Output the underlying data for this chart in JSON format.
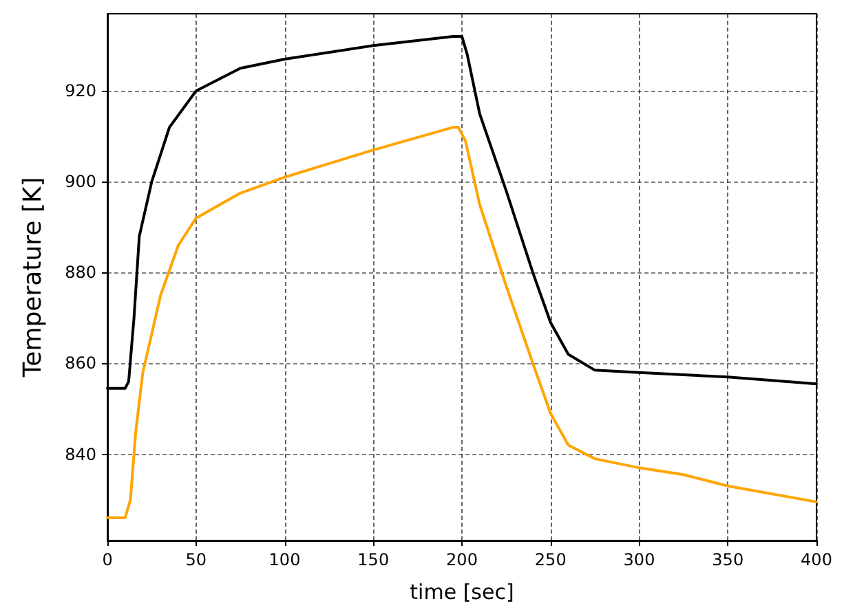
{
  "chart_data": {
    "type": "line",
    "xlabel": "time [sec]",
    "ylabel": "Temperature [K]",
    "xlim": [
      0,
      400
    ],
    "xticks": [
      0,
      50,
      100,
      150,
      200,
      250,
      300,
      350,
      400
    ],
    "ylim": [
      821,
      937
    ],
    "yticks": [
      840,
      860,
      880,
      900,
      920
    ],
    "grid": true,
    "marker": "none",
    "line_style": "solid",
    "series": [
      {
        "color": "#000000",
        "x": [
          0,
          10,
          12,
          15,
          18,
          25,
          35,
          50,
          75,
          100,
          150,
          195,
          200,
          203,
          210,
          225,
          240,
          250,
          260,
          275,
          300,
          325,
          350,
          400
        ],
        "values": [
          854.5,
          854.5,
          856,
          870,
          888,
          900,
          912,
          920,
          925,
          927,
          930,
          932,
          932,
          928,
          915,
          898,
          880,
          869,
          862,
          858.5,
          858,
          857.5,
          857,
          855.5
        ]
      },
      {
        "color": "#ffa500",
        "x": [
          0,
          10,
          13,
          16,
          20,
          30,
          40,
          50,
          75,
          100,
          150,
          195,
          198,
          202,
          210,
          225,
          240,
          250,
          260,
          275,
          300,
          325,
          350,
          400
        ],
        "values": [
          826,
          826,
          830,
          845,
          858,
          875,
          886,
          892,
          897.5,
          901,
          907,
          912,
          912,
          909,
          895,
          877,
          860,
          849,
          842,
          839,
          837,
          835.5,
          833,
          829.5
        ]
      }
    ]
  }
}
